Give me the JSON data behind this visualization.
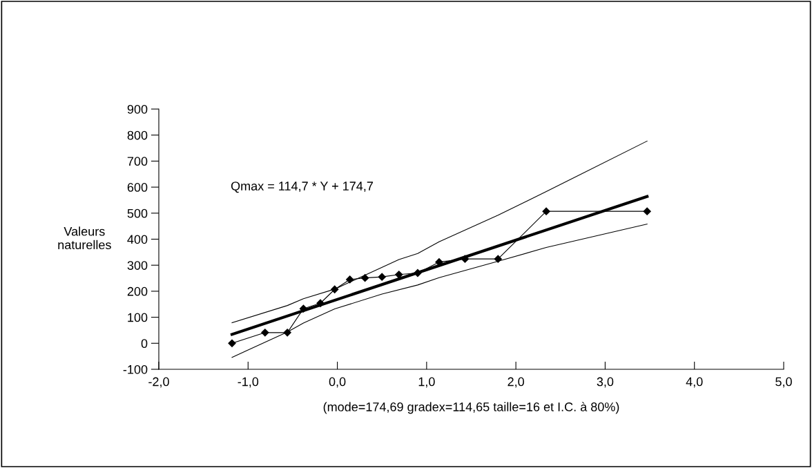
{
  "chart_data": {
    "type": "line",
    "xlabel": "(mode=174,69 gradex=114,65 taille=16 et I.C. à 80%)",
    "ylabel": "Valeurs\nnaturelles",
    "annotations": [
      "Qmax = 114,7 * Y + 174,7"
    ],
    "series": [
      {
        "color": "#000000",
        "marker": "diamond",
        "x": [
          -1.18,
          -0.81,
          -0.56,
          -0.38,
          -0.19,
          -0.03,
          0.14,
          0.31,
          0.5,
          0.69,
          0.9,
          1.14,
          1.43,
          1.8,
          2.34,
          3.47
        ],
        "values": [
          0,
          41,
          41,
          133,
          154,
          207,
          245,
          251,
          255,
          264,
          270,
          312,
          324,
          324,
          507,
          507
        ]
      },
      {
        "color": "#000000",
        "x": [
          -1.18,
          3.47
        ],
        "values": [
          34,
          564
        ]
      },
      {
        "color": "#000000",
        "x": [
          -1.18,
          -0.56,
          -0.38,
          -0.03,
          0.69,
          0.9,
          1.14,
          1.8,
          2.34,
          3.47
        ],
        "values": [
          79,
          145,
          171,
          208,
          322,
          345,
          390,
          492,
          583,
          777
        ]
      },
      {
        "color": "#000000",
        "x": [
          -1.18,
          -0.56,
          -0.38,
          -0.03,
          0.5,
          0.9,
          1.14,
          1.8,
          2.34,
          3.47
        ],
        "values": [
          -54,
          43,
          78,
          132,
          189,
          224,
          252,
          315,
          368,
          458
        ]
      }
    ],
    "xlim": [
      -2,
      5
    ],
    "xticks": [
      {
        "value": -2,
        "label": "-2,0"
      },
      {
        "value": -1,
        "label": "-1,0"
      },
      {
        "value": 0,
        "label": "0,0"
      },
      {
        "value": 1,
        "label": "1,0"
      },
      {
        "value": 2,
        "label": "2,0"
      },
      {
        "value": 3,
        "label": "3,0"
      },
      {
        "value": 4,
        "label": "4,0"
      },
      {
        "value": 5,
        "label": "5,0"
      }
    ],
    "ylim": [
      -100,
      900
    ],
    "yticks": [
      -100,
      0,
      100,
      200,
      300,
      400,
      500,
      600,
      700,
      800,
      900
    ],
    "grid": false,
    "legend": false
  }
}
